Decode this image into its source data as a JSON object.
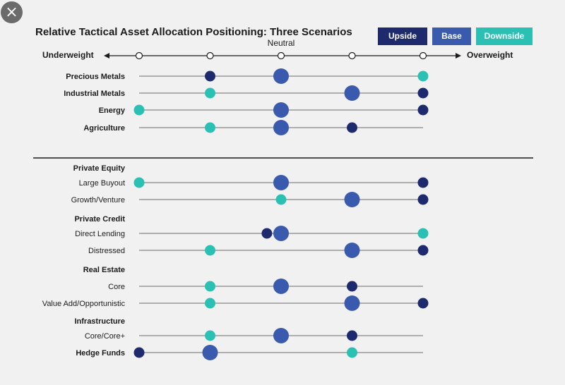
{
  "close_icon": "×",
  "chart_data": {
    "type": "dot_plot",
    "title": "Relative Tactical Asset Allocation Positioning: Three Scenarios",
    "scale": {
      "left_label": "Underweight",
      "center_label": "Neutral",
      "right_label": "Overweight",
      "levels": [
        -2,
        -1,
        0,
        1,
        2
      ]
    },
    "legend": [
      {
        "name": "Upside",
        "color": "#1e2a6e"
      },
      {
        "name": "Base",
        "color": "#3a5aad"
      },
      {
        "name": "Downside",
        "color": "#2bc0b4"
      }
    ],
    "rows": [
      {
        "label": "Precious Metals",
        "bold": true,
        "header": false,
        "start": -2,
        "end": 2,
        "upside": -1,
        "base": 0,
        "downside": 2
      },
      {
        "label": "Industrial Metals",
        "bold": true,
        "header": false,
        "start": -2,
        "end": 2,
        "upside": 2,
        "base": 1,
        "downside": -1
      },
      {
        "label": "Energy",
        "bold": true,
        "header": false,
        "start": -2,
        "end": 2,
        "upside": 2,
        "base": 0,
        "downside": -2
      },
      {
        "label": "Agriculture",
        "bold": true,
        "header": false,
        "start": -2,
        "end": 2,
        "upside": 1,
        "base": 0,
        "downside": -1
      },
      {
        "label": "Private Equity",
        "bold": true,
        "header": true
      },
      {
        "label": "Large Buyout",
        "bold": false,
        "header": false,
        "start": -2,
        "end": 2,
        "upside": 2,
        "base": 0,
        "downside": -2
      },
      {
        "label": "Growth/Venture",
        "bold": false,
        "header": false,
        "start": -2,
        "end": 2,
        "upside": 2,
        "base": 1,
        "downside": 0
      },
      {
        "label": "Private Credit",
        "bold": true,
        "header": true
      },
      {
        "label": "Direct Lending",
        "bold": false,
        "header": false,
        "start": -2,
        "end": 2,
        "upside": -0.2,
        "base": 0,
        "downside": 2
      },
      {
        "label": "Distressed",
        "bold": false,
        "header": false,
        "start": -2,
        "end": 2,
        "upside": 2,
        "base": 1,
        "downside": -1
      },
      {
        "label": "Real Estate",
        "bold": true,
        "header": true
      },
      {
        "label": "Core",
        "bold": false,
        "header": false,
        "start": -2,
        "end": 2,
        "upside": 1,
        "base": 0,
        "downside": -1
      },
      {
        "label": "Value Add/Opportunistic",
        "bold": false,
        "header": false,
        "start": -2,
        "end": 2,
        "upside": 2,
        "base": 1,
        "downside": -1
      },
      {
        "label": "Infrastructure",
        "bold": true,
        "header": true
      },
      {
        "label": "Core/Core+",
        "bold": false,
        "header": false,
        "start": -2,
        "end": 2,
        "upside": 1,
        "base": 0,
        "downside": -1
      },
      {
        "label": "Hedge Funds",
        "bold": true,
        "header": false,
        "start": -2,
        "end": 2,
        "upside": -2,
        "base": -1,
        "downside": 1
      }
    ]
  }
}
